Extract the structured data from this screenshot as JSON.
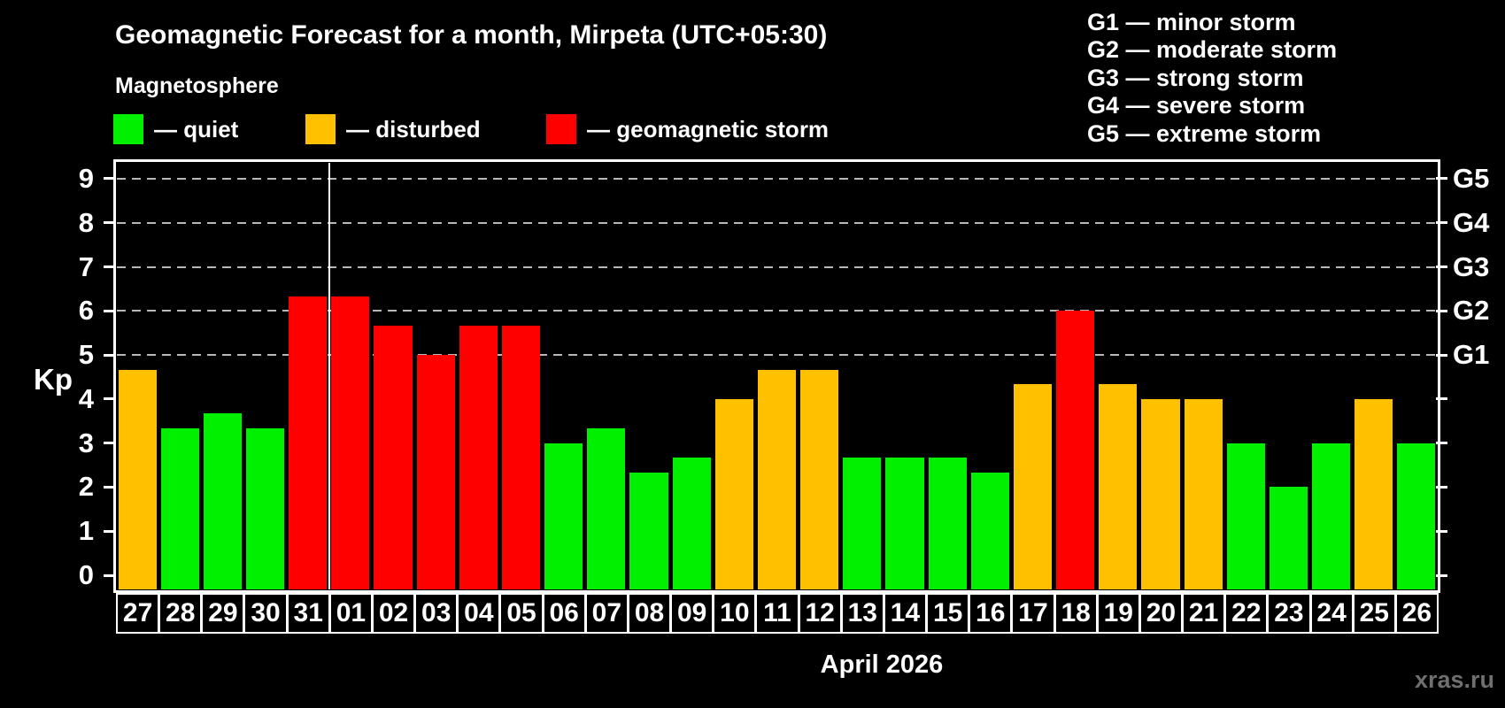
{
  "watermark": "xras.ru",
  "chart_data": {
    "type": "bar",
    "title": "Geomagnetic Forecast for a month, Mirpeta (UTC+05:30)",
    "subtitle": "Magnetosphere",
    "ylabel": "Kp",
    "xlabel": "April 2026",
    "ylim": [
      0,
      9
    ],
    "yticks": [
      0,
      1,
      2,
      3,
      4,
      5,
      6,
      7,
      8,
      9
    ],
    "gridlines_at": [
      5,
      6,
      7,
      8,
      9
    ],
    "grid_style": "dashed",
    "legend_position": "top-left",
    "colors": {
      "quiet": "#00f000",
      "disturbed": "#ffc000",
      "storm": "#ff0000"
    },
    "legend": {
      "items": [
        {
          "status": "quiet",
          "label": "— quiet"
        },
        {
          "status": "disturbed",
          "label": "— disturbed"
        },
        {
          "status": "storm",
          "label": "— geomagnetic storm"
        }
      ]
    },
    "g_scale_descriptions": [
      "G1 — minor storm",
      "G2 — moderate storm",
      "G3 — strong storm",
      "G4 — severe storm",
      "G5 — extreme storm"
    ],
    "right_axis_labels": [
      {
        "kp": 5,
        "label": "G1"
      },
      {
        "kp": 6,
        "label": "G2"
      },
      {
        "kp": 7,
        "label": "G3"
      },
      {
        "kp": 8,
        "label": "G4"
      },
      {
        "kp": 9,
        "label": "G5"
      }
    ],
    "categories": [
      "27",
      "28",
      "29",
      "30",
      "31",
      "01",
      "02",
      "03",
      "04",
      "05",
      "06",
      "07",
      "08",
      "09",
      "10",
      "11",
      "12",
      "13",
      "14",
      "15",
      "16",
      "17",
      "18",
      "19",
      "20",
      "21",
      "22",
      "23",
      "24",
      "25",
      "26"
    ],
    "values": [
      4.67,
      3.33,
      3.67,
      3.33,
      6.33,
      6.33,
      5.67,
      5.0,
      5.67,
      5.67,
      3.0,
      3.33,
      2.33,
      2.67,
      4.0,
      4.67,
      4.67,
      2.67,
      2.67,
      2.67,
      2.33,
      4.33,
      6.0,
      4.33,
      4.0,
      4.0,
      3.0,
      2.0,
      3.0,
      4.0,
      3.0
    ],
    "statuses": [
      "disturbed",
      "quiet",
      "quiet",
      "quiet",
      "storm",
      "storm",
      "storm",
      "storm",
      "storm",
      "storm",
      "quiet",
      "quiet",
      "quiet",
      "quiet",
      "disturbed",
      "disturbed",
      "disturbed",
      "quiet",
      "quiet",
      "quiet",
      "quiet",
      "disturbed",
      "storm",
      "disturbed",
      "disturbed",
      "disturbed",
      "quiet",
      "quiet",
      "quiet",
      "disturbed",
      "quiet"
    ],
    "month_boundary_after_index": 4
  }
}
